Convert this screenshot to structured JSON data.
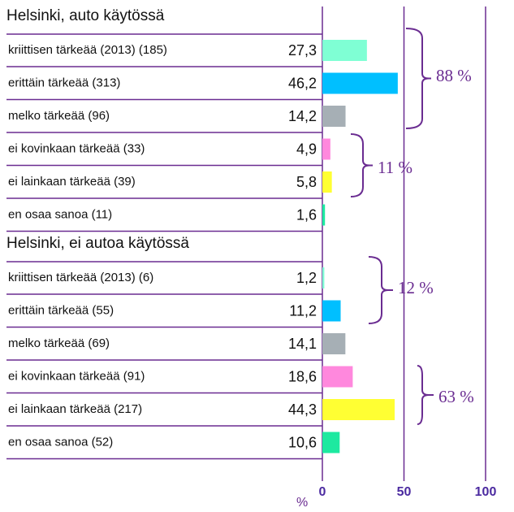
{
  "chart_data": {
    "type": "bar",
    "groups": [
      {
        "title": "Helsinki, auto käytössä",
        "categories": [
          "kriittisen tärkeää (2013) (185)",
          "erittäin tärkeää (313)",
          "melko tärkeää (96)",
          "ei kovinkaan tärkeää (33)",
          "ei lainkaan tärkeää (39)",
          "en osaa sanoa (11)"
        ],
        "values": [
          27.3,
          46.2,
          14.2,
          4.9,
          5.8,
          1.6
        ],
        "value_labels": [
          "27,3",
          "46,2",
          "14,2",
          "4,9",
          "5,8",
          "1,6"
        ]
      },
      {
        "title": "Helsinki, ei autoa käytössä",
        "categories": [
          "kriittisen tärkeää (2013) (6)",
          "erittäin tärkeää (55)",
          "melko tärkeää (69)",
          "ei kovinkaan tärkeää (91)",
          "ei lainkaan tärkeää (217)",
          "en osaa sanoa (52)"
        ],
        "values": [
          1.2,
          11.2,
          14.1,
          18.6,
          44.3,
          10.6
        ],
        "value_labels": [
          "1,2",
          "11,2",
          "14,1",
          "18,6",
          "44,3",
          "10,6"
        ]
      }
    ],
    "colors": [
      "#7fffd4",
      "#00bfff",
      "#a6afb5",
      "#ff88dd",
      "#ffff33",
      "#1de9a0"
    ],
    "annotations": [
      "88 %",
      "11 %",
      "12 %",
      "63 %"
    ],
    "x_label": "%",
    "xlim": [
      0,
      100
    ],
    "xticks": [
      0,
      50,
      100
    ],
    "grid": true
  }
}
